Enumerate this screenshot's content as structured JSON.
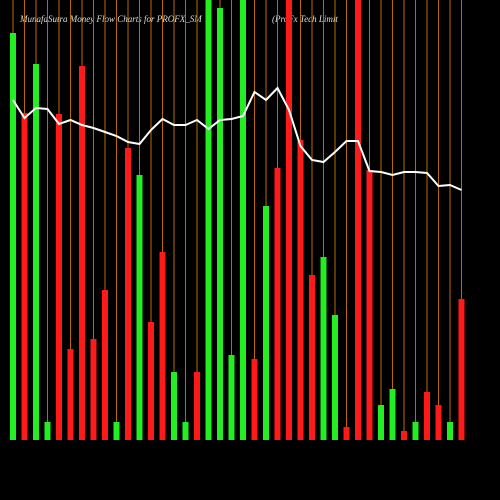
{
  "chart_data": {
    "type": "bar",
    "title": "MunafaSutra  Money Flow  Charts for PROFX_SM",
    "subtitle": "(ProFx Tech Limit",
    "values": [
      407,
      327,
      376,
      18,
      326,
      91,
      374,
      101,
      150,
      18,
      292,
      265,
      118,
      188,
      68,
      18,
      68,
      440,
      432,
      85,
      440,
      81,
      234,
      272,
      440,
      300,
      165,
      183,
      125,
      13,
      440,
      270,
      35,
      51,
      9,
      18,
      48,
      35,
      18,
      141
    ],
    "colors": [
      "#22ee22",
      "#ff1a1a",
      "#22ee22",
      "#22ee22",
      "#ff1a1a",
      "#ff1a1a",
      "#ff1a1a",
      "#ff1a1a",
      "#ff1a1a",
      "#22ee22",
      "#ff1a1a",
      "#22ee22",
      "#ff1a1a",
      "#ff1a1a",
      "#22ee22",
      "#22ee22",
      "#ff1a1a",
      "#22ee22",
      "#22ee22",
      "#22ee22",
      "#22ee22",
      "#ff1a1a",
      "#22ee22",
      "#ff1a1a",
      "#ff1a1a",
      "#ff1a1a",
      "#ff1a1a",
      "#22ee22",
      "#22ee22",
      "#ff1a1a",
      "#ff1a1a",
      "#ff1a1a",
      "#22ee22",
      "#22ee22",
      "#ff1a1a",
      "#22ee22",
      "#ff1a1a",
      "#ff1a1a",
      "#22ee22",
      "#ff1a1a"
    ],
    "line_values": [
      340,
      322,
      332,
      331,
      316,
      320,
      315,
      312,
      308,
      304,
      298,
      296,
      310,
      321,
      315,
      315,
      320,
      311,
      320,
      321,
      324,
      348,
      340,
      352,
      330,
      294,
      280,
      278,
      288,
      299,
      299,
      269,
      268,
      265,
      268,
      268,
      267,
      254,
      255,
      250
    ],
    "line_color": "#ffffff",
    "grid_color": "#b86a00",
    "ylim": [
      0,
      440
    ]
  }
}
